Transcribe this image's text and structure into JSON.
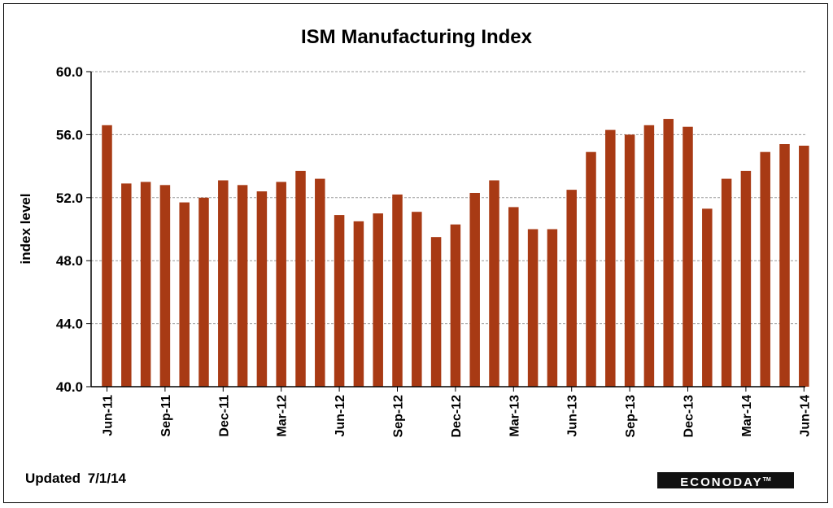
{
  "chart_data": {
    "type": "bar",
    "title": "ISM Manufacturing Index",
    "ylabel": "index level",
    "xlabel": "",
    "ylim": [
      40,
      60
    ],
    "yticks": [
      "40.0",
      "44.0",
      "48.0",
      "52.0",
      "56.0",
      "60.0"
    ],
    "grid": true,
    "bar_color": "#A83A14",
    "categories": [
      "Jun-11",
      "Jul-11",
      "Aug-11",
      "Sep-11",
      "Oct-11",
      "Nov-11",
      "Dec-11",
      "Jan-12",
      "Feb-12",
      "Mar-12",
      "Apr-12",
      "May-12",
      "Jun-12",
      "Jul-12",
      "Aug-12",
      "Sep-12",
      "Oct-12",
      "Nov-12",
      "Dec-12",
      "Jan-13",
      "Feb-13",
      "Mar-13",
      "Apr-13",
      "May-13",
      "Jun-13",
      "Jul-13",
      "Aug-13",
      "Sep-13",
      "Oct-13",
      "Nov-13",
      "Dec-13",
      "Jan-14",
      "Feb-14",
      "Mar-14",
      "Apr-14",
      "May-14",
      "Jun-14"
    ],
    "x_tick_labels": [
      "Jun-11",
      "Sep-11",
      "Dec-11",
      "Mar-12",
      "Jun-12",
      "Sep-12",
      "Dec-12",
      "Mar-13",
      "Jun-13",
      "Sep-13",
      "Dec-13",
      "Mar-14",
      "Jun-14"
    ],
    "values": [
      56.6,
      52.9,
      53.0,
      52.8,
      51.7,
      52.0,
      53.1,
      52.8,
      52.4,
      53.0,
      53.7,
      53.2,
      50.9,
      50.5,
      51.0,
      52.2,
      51.1,
      49.5,
      50.3,
      52.3,
      53.1,
      51.4,
      50.0,
      50.0,
      52.5,
      54.9,
      56.3,
      56.0,
      56.6,
      57.0,
      56.5,
      51.3,
      53.2,
      53.7,
      54.9,
      55.4,
      55.3
    ]
  },
  "footer": {
    "updated_label": "Updated",
    "updated_date": "7/1/14",
    "brand": "ECONODAY",
    "brand_tm": "TM"
  }
}
